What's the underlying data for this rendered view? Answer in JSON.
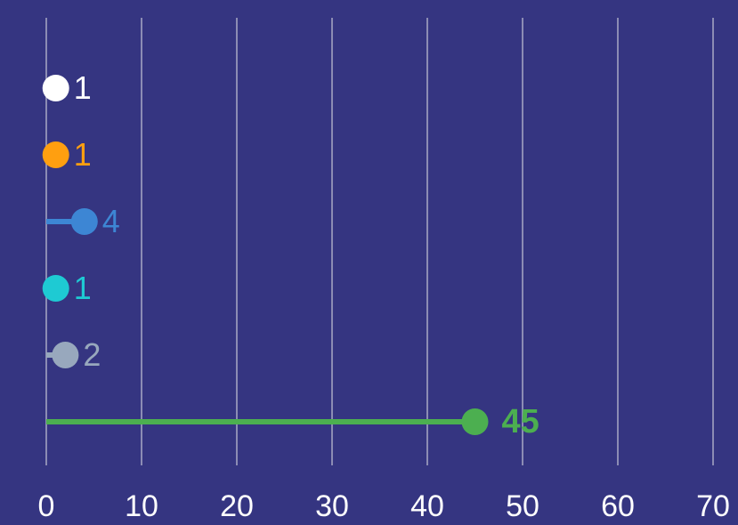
{
  "chart_data": {
    "type": "lollipop",
    "title": "",
    "xlabel": "",
    "ylabel": "",
    "xlim": [
      0,
      70
    ],
    "x_ticks": [
      "0",
      "10",
      "20",
      "30",
      "40",
      "50",
      "60",
      "70"
    ],
    "grid": true,
    "points": [
      {
        "value": 1,
        "label": "1",
        "color": "#ffffff"
      },
      {
        "value": 1,
        "label": "1",
        "color": "#ff9f10"
      },
      {
        "value": 4,
        "label": "4",
        "color": "#3d86d4"
      },
      {
        "value": 1,
        "label": "1",
        "color": "#1ecad3"
      },
      {
        "value": 2,
        "label": "2",
        "color": "#98a8bd"
      },
      {
        "value": 45,
        "label": "45",
        "color": "#4caf50"
      }
    ]
  },
  "colors": {
    "background": "#353581",
    "grid": "#8c8cb4",
    "tick_text": "#ffffff"
  }
}
